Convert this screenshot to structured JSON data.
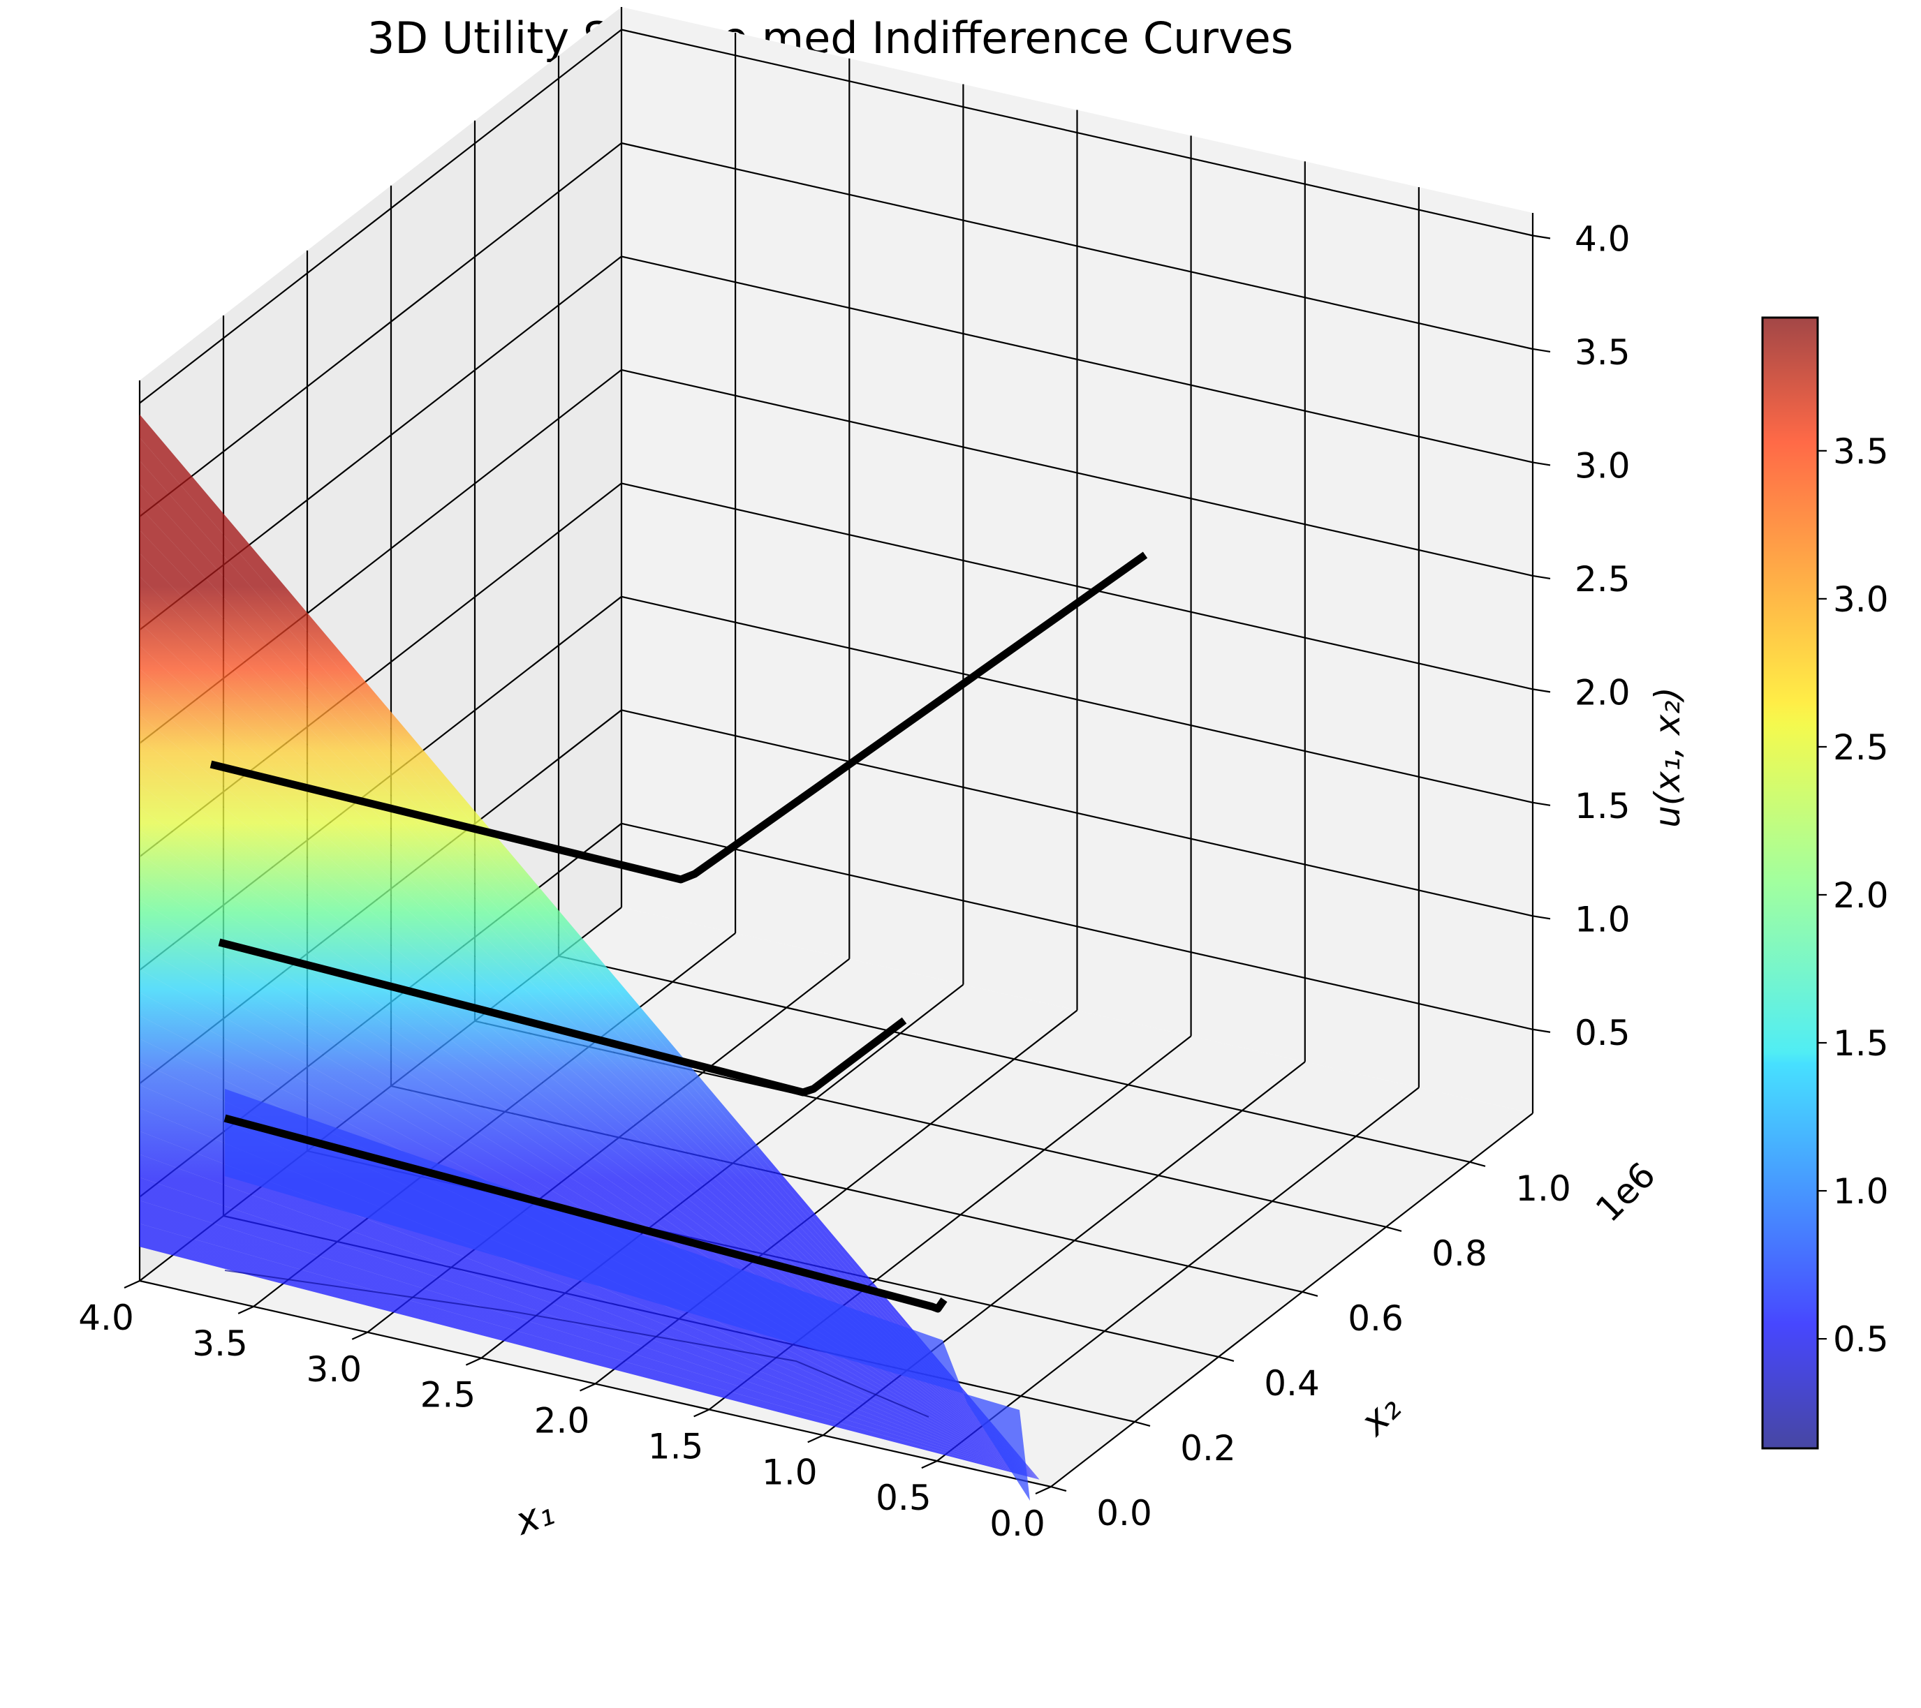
{
  "chart_data": {
    "type": "surface",
    "title": "3D Utility Surface med Indifference Curves",
    "xlabel": "x₁",
    "ylabel": "x₂",
    "zlabel": "u(x₁, x₂)",
    "y_offset_label": "1e6",
    "x_ticks": [
      "0.0",
      "0.5",
      "1.0",
      "1.5",
      "2.0",
      "2.5",
      "3.0",
      "3.5",
      "4.0"
    ],
    "y_ticks": [
      "0.0",
      "0.2",
      "0.4",
      "0.6",
      "0.8",
      "1.0"
    ],
    "z_ticks": [
      "0.5",
      "1.0",
      "1.5",
      "2.0",
      "2.5",
      "3.0",
      "3.5",
      "4.0"
    ],
    "xlim": [
      0,
      4
    ],
    "ylim": [
      0,
      1.15
    ],
    "zlim": [
      0.13,
      4.1
    ],
    "surface": {
      "description_values": {
        "x_range": [
          0.0,
          4.0
        ],
        "u_min": 0.13,
        "u_max": 3.95
      },
      "colormap": "jet",
      "alpha": 0.7
    },
    "indifference_curves": [
      {
        "u": 0.7
      },
      {
        "u": 1.2
      },
      {
        "u": 2.2
      }
    ],
    "colorbar": {
      "ticks": [
        "0.5",
        "1.0",
        "1.5",
        "2.0",
        "2.5",
        "3.0",
        "3.5"
      ],
      "range": [
        0.13,
        3.95
      ]
    },
    "grid": true
  },
  "colors": {
    "pane": "#f2f2f2",
    "grid": "#000000",
    "curve": "#000000"
  }
}
